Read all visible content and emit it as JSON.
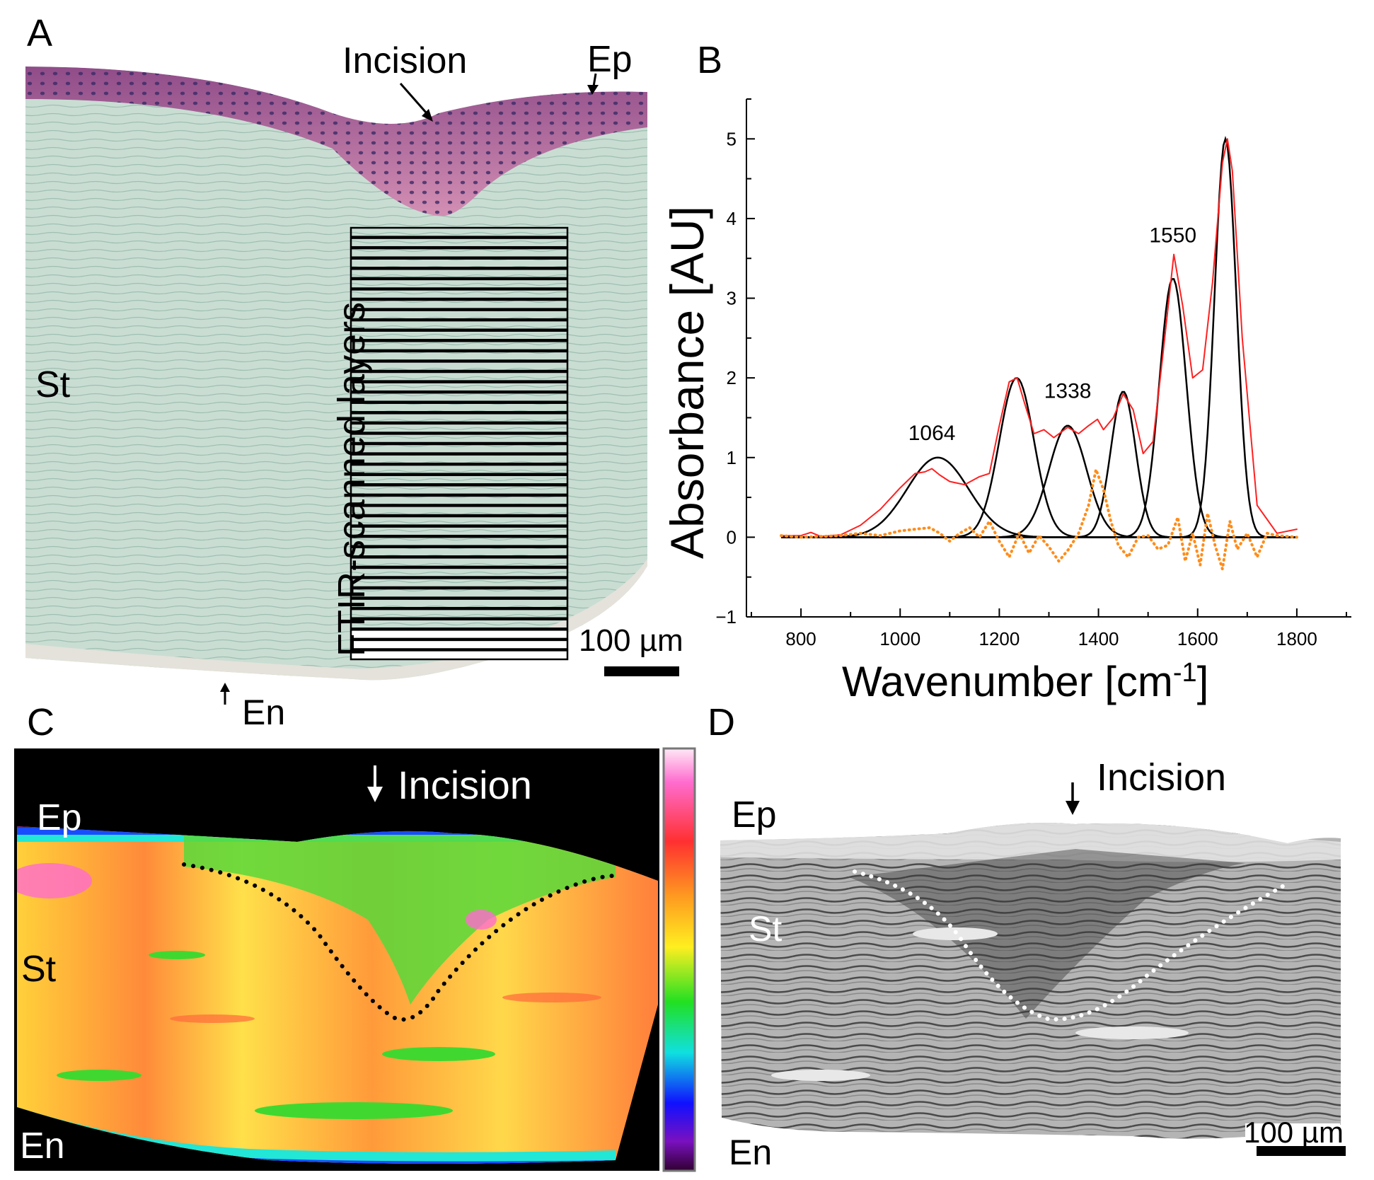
{
  "panels": {
    "a": {
      "letter": "A",
      "labels": {
        "incision": "Incision",
        "ep": "Ep",
        "st": "St",
        "en": "En",
        "layers": "FTIR-scanned layers",
        "scale": "100 µm"
      }
    },
    "b": {
      "letter": "B"
    },
    "c": {
      "letter": "C",
      "labels": {
        "incision": "Incision",
        "ep": "Ep",
        "st": "St",
        "en": "En"
      }
    },
    "d": {
      "letter": "D",
      "labels": {
        "incision": "Incision",
        "ep": "Ep",
        "st": "St",
        "en": "En",
        "scale": "100 µm"
      }
    }
  },
  "colors": {
    "measured": "#ff2020",
    "fit": "#000000",
    "residual": "#ff8c1a",
    "stain_green": "#c9ddd3",
    "epithelium": "#b0588c"
  },
  "chart_data": {
    "type": "line",
    "title": "",
    "xlabel": "Wavenumber [cm",
    "xlabel_sup": "-1",
    "xlabel_end": "]",
    "ylabel": "Absorbance [AU]",
    "xlim": [
      690,
      1910
    ],
    "ylim": [
      -1,
      5.5
    ],
    "xticks": [
      800,
      1000,
      1200,
      1400,
      1600,
      1800
    ],
    "yticks": [
      -1,
      0,
      1,
      2,
      3,
      4,
      5
    ],
    "annotations": [
      {
        "text": "1064",
        "x": 1064,
        "y": 1.22
      },
      {
        "text": "1338",
        "x": 1338,
        "y": 1.75
      },
      {
        "text": "1550",
        "x": 1550,
        "y": 3.7
      }
    ],
    "fit_peaks": [
      {
        "center": 1076,
        "amplitude": 1.0,
        "sigma": 62
      },
      {
        "center": 1235,
        "amplitude": 2.0,
        "sigma": 35
      },
      {
        "center": 1338,
        "amplitude": 1.4,
        "sigma": 38
      },
      {
        "center": 1450,
        "amplitude": 1.83,
        "sigma": 25
      },
      {
        "center": 1550,
        "amplitude": 3.25,
        "sigma": 27
      },
      {
        "center": 1656,
        "amplitude": 5.0,
        "sigma": 22
      }
    ],
    "series": [
      {
        "name": "measured spectrum",
        "x": [
          760,
          800,
          820,
          840,
          880,
          920,
          960,
          1000,
          1030,
          1050,
          1064,
          1080,
          1100,
          1130,
          1160,
          1180,
          1200,
          1220,
          1236,
          1250,
          1270,
          1290,
          1310,
          1338,
          1360,
          1380,
          1398,
          1410,
          1430,
          1450,
          1470,
          1490,
          1510,
          1530,
          1552,
          1570,
          1590,
          1610,
          1630,
          1650,
          1660,
          1670,
          1690,
          1720,
          1760,
          1800
        ],
        "y": [
          0.02,
          0.02,
          0.06,
          0.01,
          0.03,
          0.15,
          0.35,
          0.62,
          0.8,
          0.82,
          0.86,
          0.78,
          0.7,
          0.66,
          0.76,
          0.8,
          1.4,
          1.95,
          2.0,
          1.7,
          1.3,
          1.35,
          1.25,
          1.38,
          1.3,
          1.4,
          1.48,
          1.35,
          1.5,
          1.8,
          1.6,
          1.05,
          1.2,
          2.3,
          3.55,
          2.9,
          2.0,
          2.1,
          3.2,
          4.7,
          5.0,
          4.6,
          2.5,
          0.4,
          0.05,
          0.1
        ]
      },
      {
        "name": "residual",
        "x": [
          760,
          800,
          840,
          880,
          920,
          960,
          1000,
          1030,
          1060,
          1080,
          1100,
          1120,
          1140,
          1160,
          1180,
          1200,
          1220,
          1240,
          1260,
          1280,
          1300,
          1320,
          1340,
          1360,
          1380,
          1395,
          1410,
          1425,
          1440,
          1460,
          1480,
          1500,
          1520,
          1540,
          1560,
          1575,
          1590,
          1605,
          1620,
          1635,
          1650,
          1665,
          1680,
          1700,
          1720,
          1740,
          1760,
          1800
        ],
        "y": [
          0.02,
          0.0,
          0.01,
          0.02,
          0.05,
          0.02,
          0.08,
          0.1,
          0.12,
          0.05,
          -0.05,
          0.05,
          0.12,
          0.0,
          0.2,
          -0.05,
          -0.25,
          0.05,
          -0.2,
          0.02,
          -0.12,
          -0.3,
          -0.15,
          0.05,
          0.4,
          0.85,
          0.6,
          0.2,
          -0.1,
          -0.25,
          0.0,
          0.02,
          -0.15,
          -0.1,
          0.25,
          -0.3,
          0.05,
          -0.35,
          0.3,
          -0.1,
          -0.4,
          0.2,
          -0.15,
          0.05,
          -0.25,
          0.05,
          0.02,
          0.0
        ]
      }
    ]
  }
}
